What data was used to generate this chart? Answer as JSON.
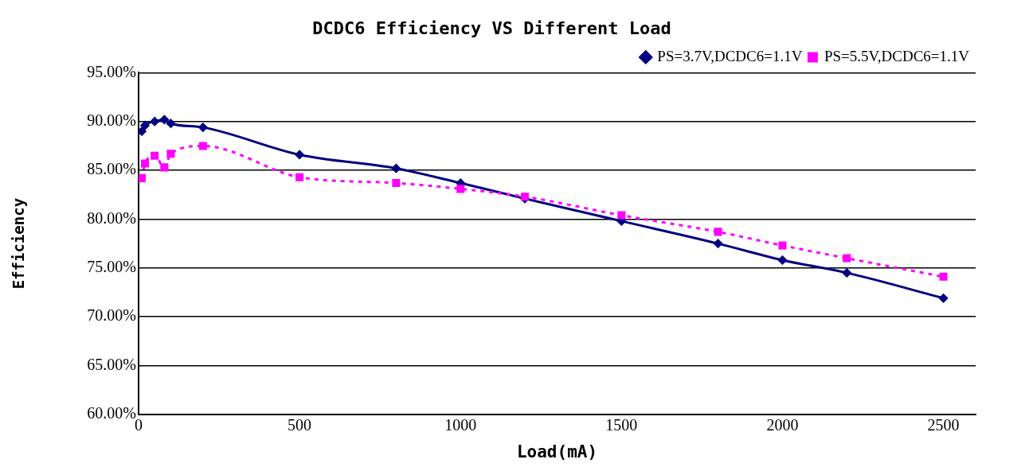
{
  "chart_data": {
    "type": "line",
    "title": "DCDC6 Efficiency VS Different Load",
    "xlabel": "Load(mA)",
    "ylabel": "Efficiency",
    "x": [
      10,
      20,
      50,
      80,
      100,
      200,
      500,
      800,
      1000,
      1200,
      1500,
      1800,
      2000,
      2200,
      2500
    ],
    "series": [
      {
        "name": "PS=3.7V,DCDC6=1.1V",
        "color": "#000080",
        "marker": "diamond",
        "line_style": "solid",
        "values": [
          89.0,
          89.6,
          90.0,
          90.2,
          89.8,
          89.4,
          86.6,
          85.2,
          83.7,
          82.1,
          79.8,
          77.5,
          75.8,
          74.5,
          71.9
        ]
      },
      {
        "name": "PS=5.5V,DCDC6=1.1V",
        "color": "#ff00ff",
        "marker": "square",
        "line_style": "dotted",
        "values": [
          84.2,
          85.7,
          86.5,
          85.3,
          86.7,
          87.5,
          84.3,
          83.7,
          83.1,
          82.3,
          80.4,
          78.7,
          77.3,
          76.0,
          74.1
        ]
      }
    ],
    "xlim": [
      0,
      2600
    ],
    "xticks": [
      0,
      500,
      1000,
      1500,
      2000,
      2500
    ],
    "ylim": [
      60,
      95
    ],
    "yticks": [
      {
        "value": 60,
        "label": "60.00%"
      },
      {
        "value": 65,
        "label": "65.00%"
      },
      {
        "value": 70,
        "label": "70.00%"
      },
      {
        "value": 75,
        "label": "75.00%"
      },
      {
        "value": 80,
        "label": "80.00%"
      },
      {
        "value": 85,
        "label": "85.00%"
      },
      {
        "value": 90,
        "label": "90.00%"
      },
      {
        "value": 95,
        "label": "95.00%"
      }
    ],
    "grid": "y",
    "legend": "top right"
  }
}
